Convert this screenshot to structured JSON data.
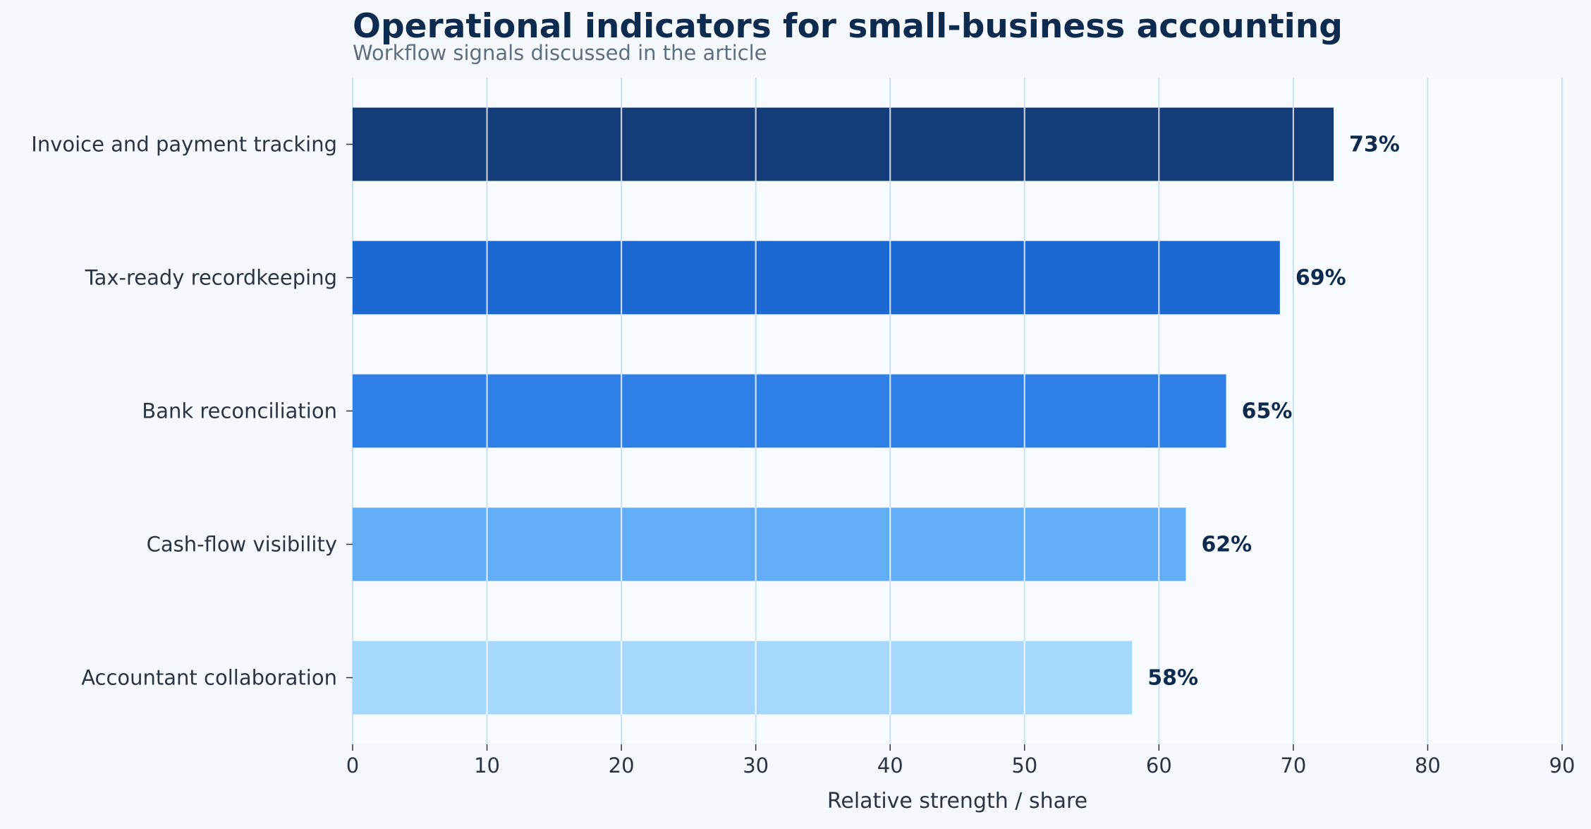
{
  "chart_data": {
    "type": "bar",
    "orientation": "horizontal",
    "title": "Operational indicators for small-business accounting",
    "subtitle": "Workflow signals discussed in the article",
    "xlabel": "Relative strength / share",
    "ylabel": "",
    "xlim": [
      0,
      90
    ],
    "xticks": [
      0,
      10,
      20,
      30,
      40,
      50,
      60,
      70,
      80,
      90
    ],
    "grid": "vertical",
    "legend": "none",
    "categories": [
      "Invoice and payment tracking",
      "Tax-ready recordkeeping",
      "Bank reconciliation",
      "Cash-flow visibility",
      "Accountant collaboration"
    ],
    "values": [
      73,
      69,
      65,
      62,
      58
    ],
    "value_labels": [
      "73%",
      "69%",
      "65%",
      "62%",
      "58%"
    ],
    "colors": [
      "#143c78",
      "#1c69d3",
      "#2f80e6",
      "#63adf7",
      "#a6d8fd"
    ]
  },
  "theme": {
    "background": "#f5f9fd",
    "plot_background": "#f7fbfe",
    "grid_color": "#cfe3ee",
    "title_color": "#0d2a4f",
    "subtitle_color": "#5f6f7f",
    "text_color": "#2b3542",
    "value_label_color": "#0d2a4f"
  }
}
